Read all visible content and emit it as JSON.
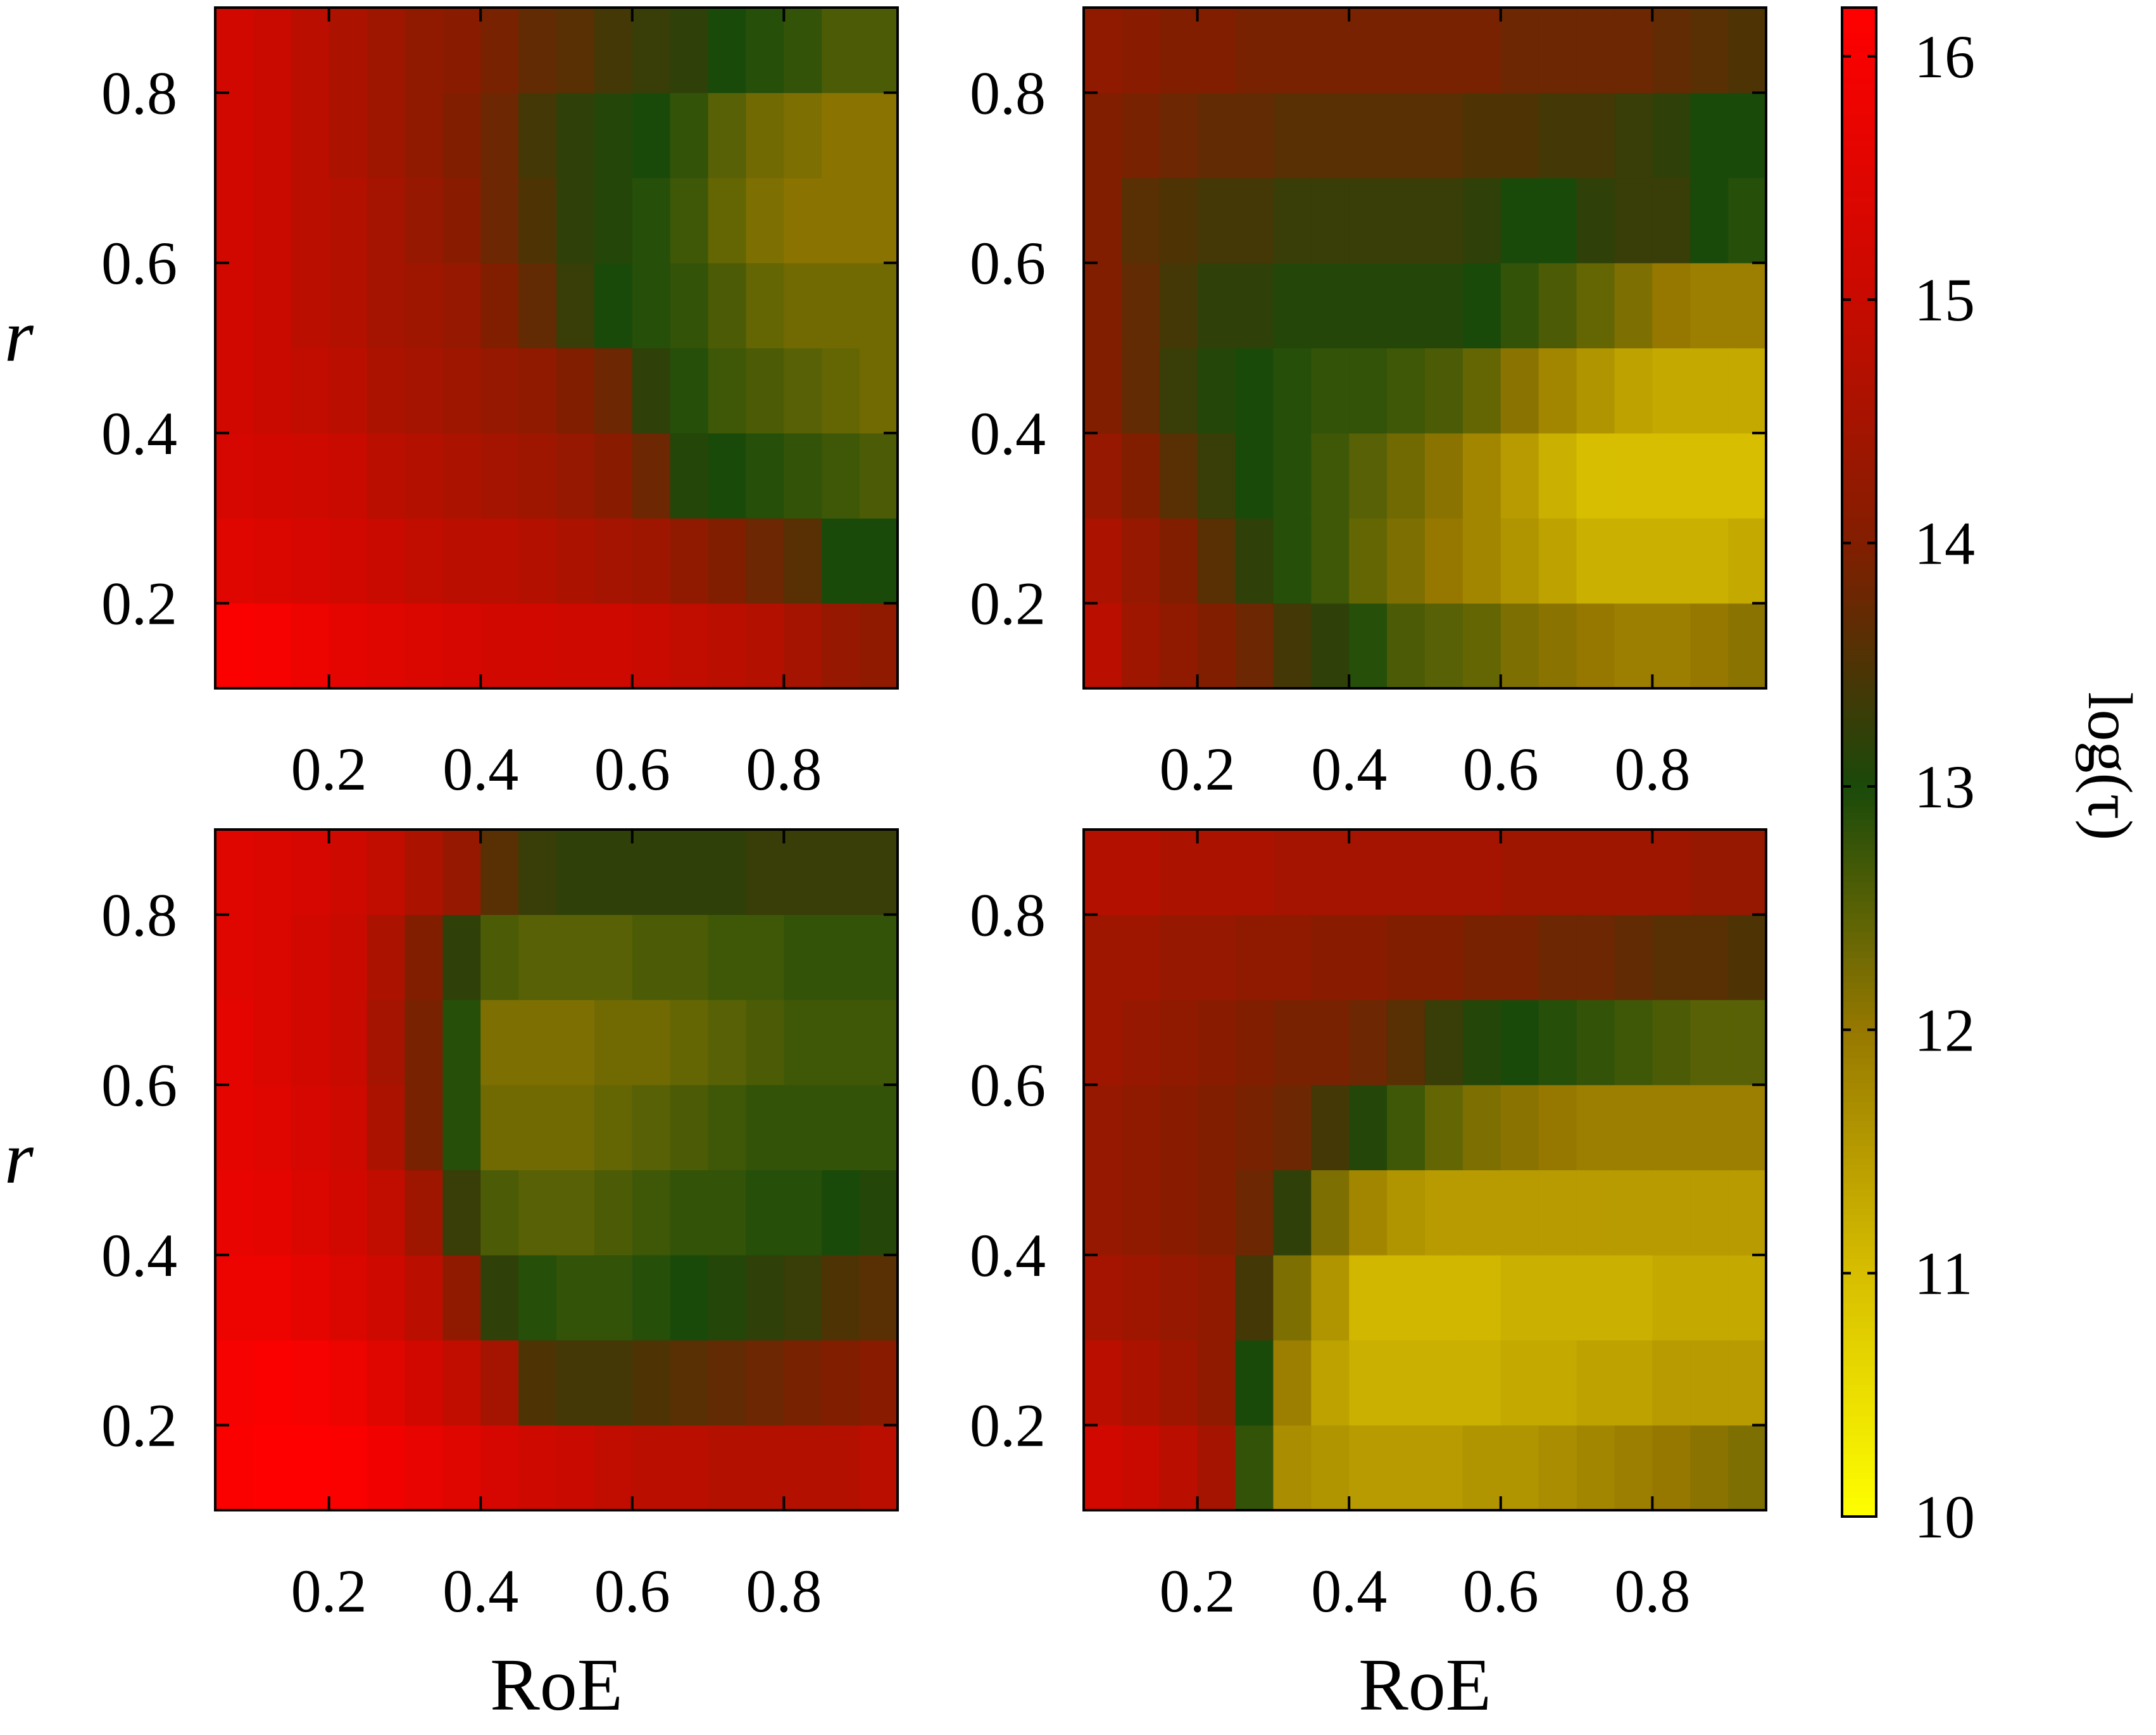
{
  "chart_data": {
    "type": "heatmap",
    "layout": "2x2 grid",
    "x_label": "RoE",
    "y_label": "r",
    "x_ticks": [
      0.2,
      0.4,
      0.6,
      0.8
    ],
    "y_ticks": [
      0.2,
      0.4,
      0.6,
      0.8
    ],
    "x_range": [
      0.05,
      0.95
    ],
    "y_range": [
      0.1,
      0.9
    ],
    "x_cell_centers": [
      0.075,
      0.125,
      0.175,
      0.225,
      0.275,
      0.325,
      0.375,
      0.425,
      0.475,
      0.525,
      0.575,
      0.625,
      0.675,
      0.725,
      0.775,
      0.825,
      0.875,
      0.925
    ],
    "y_cell_centers": [
      0.15,
      0.25,
      0.35,
      0.45,
      0.55,
      0.65,
      0.75,
      0.85
    ],
    "colorbar": {
      "label": "log(τ)",
      "range": [
        10,
        16.2
      ],
      "ticks": [
        10,
        11,
        12,
        13,
        14,
        15,
        16
      ],
      "colors": {
        "low": "#ffff00",
        "mid_low": "#d4b400",
        "mid": "#1a4a0a",
        "high": "#8b1a00",
        "max": "#ff0000"
      }
    },
    "panels": [
      {
        "position": "top-left",
        "values": [
          [
            16.1,
            16.0,
            15.8,
            15.6,
            15.5,
            15.4,
            15.3,
            15.2,
            15.2,
            15.1,
            15.1,
            15.0,
            14.9,
            14.8,
            14.7,
            14.5,
            14.3,
            14.2
          ],
          [
            15.5,
            15.4,
            15.3,
            15.2,
            15.0,
            14.9,
            14.8,
            14.8,
            14.7,
            14.6,
            14.5,
            14.4,
            14.2,
            14.0,
            13.8,
            13.6,
            13.0,
            13.0
          ],
          [
            15.3,
            15.2,
            15.1,
            15.0,
            14.8,
            14.7,
            14.6,
            14.5,
            14.4,
            14.3,
            14.1,
            13.8,
            13.1,
            13.0,
            12.9,
            12.8,
            12.7,
            12.6
          ],
          [
            15.2,
            15.0,
            14.9,
            14.8,
            14.6,
            14.5,
            14.4,
            14.3,
            14.2,
            14.0,
            13.8,
            13.2,
            12.9,
            12.7,
            12.6,
            12.5,
            12.4,
            12.3
          ],
          [
            15.2,
            15.0,
            14.8,
            14.7,
            14.5,
            14.4,
            14.3,
            14.0,
            13.7,
            13.3,
            13.0,
            12.9,
            12.8,
            12.6,
            12.4,
            12.3,
            12.3,
            12.3
          ],
          [
            15.2,
            15.0,
            14.8,
            14.7,
            14.5,
            14.3,
            14.1,
            13.8,
            13.5,
            13.2,
            13.1,
            12.9,
            12.7,
            12.4,
            12.2,
            12.1,
            12.1,
            12.1
          ],
          [
            15.2,
            15.0,
            14.8,
            14.6,
            14.4,
            14.2,
            14.0,
            13.8,
            13.4,
            13.2,
            13.1,
            13.0,
            12.8,
            12.5,
            12.3,
            12.2,
            12.1,
            12.1
          ],
          [
            15.2,
            15.0,
            14.8,
            14.6,
            14.4,
            14.2,
            14.1,
            13.9,
            13.7,
            13.6,
            13.4,
            13.3,
            13.2,
            13.0,
            12.9,
            12.8,
            12.6,
            12.6
          ]
        ]
      },
      {
        "position": "top-right",
        "values": [
          [
            14.8,
            14.4,
            14.2,
            14.0,
            13.8,
            13.4,
            13.2,
            12.9,
            12.6,
            12.5,
            12.4,
            12.2,
            12.1,
            12.0,
            11.9,
            11.9,
            12.0,
            12.1
          ],
          [
            14.6,
            14.3,
            14.0,
            13.6,
            13.2,
            12.9,
            12.7,
            12.4,
            12.2,
            12.0,
            11.8,
            11.6,
            11.4,
            11.2,
            11.2,
            11.2,
            11.2,
            11.3
          ],
          [
            14.3,
            14.0,
            13.6,
            13.3,
            13.0,
            12.9,
            12.7,
            12.5,
            12.3,
            12.1,
            11.8,
            11.5,
            11.2,
            11.0,
            11.0,
            11.0,
            11.0,
            11.0
          ],
          [
            14.0,
            13.7,
            13.3,
            13.1,
            13.0,
            12.9,
            12.8,
            12.8,
            12.7,
            12.6,
            12.4,
            12.1,
            11.8,
            11.6,
            11.4,
            11.3,
            11.3,
            11.3
          ],
          [
            14.0,
            13.7,
            13.4,
            13.2,
            13.2,
            13.1,
            13.1,
            13.1,
            13.1,
            13.1,
            13.0,
            12.8,
            12.6,
            12.4,
            12.2,
            12.0,
            11.9,
            11.9
          ],
          [
            14.0,
            13.6,
            13.5,
            13.4,
            13.4,
            13.3,
            13.3,
            13.3,
            13.3,
            13.3,
            13.2,
            13.0,
            13.0,
            13.2,
            13.3,
            13.3,
            13.0,
            12.9
          ],
          [
            14.0,
            13.9,
            13.8,
            13.7,
            13.7,
            13.6,
            13.6,
            13.6,
            13.6,
            13.6,
            13.5,
            13.5,
            13.4,
            13.4,
            13.3,
            13.2,
            13.0,
            13.0
          ],
          [
            14.2,
            14.1,
            14.0,
            14.0,
            13.9,
            13.9,
            13.9,
            13.9,
            13.9,
            13.9,
            13.9,
            13.8,
            13.8,
            13.8,
            13.8,
            13.7,
            13.6,
            13.5
          ]
        ]
      },
      {
        "position": "bottom-left",
        "values": [
          [
            16.1,
            16.2,
            16.2,
            16.1,
            15.9,
            15.7,
            15.5,
            15.3,
            15.1,
            15.0,
            14.9,
            14.8,
            14.8,
            14.7,
            14.7,
            14.7,
            14.7,
            14.8
          ],
          [
            16.0,
            16.1,
            16.0,
            15.8,
            15.5,
            15.2,
            14.9,
            14.5,
            13.5,
            13.4,
            13.4,
            13.5,
            13.6,
            13.7,
            13.8,
            13.9,
            14.0,
            14.1
          ],
          [
            15.8,
            15.8,
            15.6,
            15.4,
            15.1,
            14.8,
            14.2,
            13.2,
            12.9,
            12.8,
            12.8,
            12.9,
            13.0,
            13.1,
            13.2,
            13.3,
            13.5,
            13.6
          ],
          [
            15.7,
            15.6,
            15.4,
            15.2,
            14.9,
            14.4,
            13.3,
            12.6,
            12.5,
            12.5,
            12.6,
            12.7,
            12.8,
            12.8,
            12.9,
            12.9,
            13.0,
            13.1
          ],
          [
            15.6,
            15.5,
            15.3,
            15.1,
            14.6,
            13.9,
            12.9,
            12.3,
            12.3,
            12.3,
            12.4,
            12.5,
            12.6,
            12.7,
            12.8,
            12.8,
            12.8,
            12.8
          ],
          [
            15.6,
            15.4,
            15.2,
            15.0,
            14.5,
            13.9,
            12.9,
            12.2,
            12.2,
            12.2,
            12.3,
            12.3,
            12.4,
            12.5,
            12.6,
            12.7,
            12.7,
            12.7
          ],
          [
            15.5,
            15.4,
            15.2,
            15.0,
            14.6,
            14.0,
            13.2,
            12.6,
            12.5,
            12.5,
            12.5,
            12.6,
            12.6,
            12.7,
            12.7,
            12.8,
            12.8,
            12.8
          ],
          [
            15.5,
            15.4,
            15.3,
            15.1,
            14.9,
            14.6,
            14.3,
            13.6,
            13.3,
            13.2,
            13.2,
            13.2,
            13.2,
            13.2,
            13.3,
            13.3,
            13.3,
            13.3
          ]
        ]
      },
      {
        "position": "bottom-right",
        "values": [
          [
            15.2,
            15.0,
            14.8,
            14.5,
            12.8,
            11.7,
            11.6,
            11.5,
            11.5,
            11.5,
            11.6,
            11.6,
            11.7,
            11.8,
            11.9,
            12.0,
            12.1,
            12.2
          ],
          [
            14.8,
            14.6,
            14.4,
            14.2,
            13.0,
            11.9,
            11.4,
            11.2,
            11.2,
            11.2,
            11.2,
            11.3,
            11.3,
            11.4,
            11.4,
            11.5,
            11.5,
            11.5
          ],
          [
            14.5,
            14.4,
            14.3,
            14.2,
            13.4,
            12.2,
            11.6,
            11.1,
            11.1,
            11.1,
            11.1,
            11.2,
            11.2,
            11.2,
            11.2,
            11.3,
            11.3,
            11.3
          ],
          [
            14.3,
            14.2,
            14.1,
            14.0,
            13.8,
            13.2,
            12.2,
            11.8,
            11.6,
            11.5,
            11.5,
            11.5,
            11.5,
            11.5,
            11.5,
            11.5,
            11.5,
            11.5
          ],
          [
            14.3,
            14.2,
            14.1,
            14.0,
            13.9,
            13.8,
            13.4,
            13.1,
            12.7,
            12.4,
            12.2,
            12.1,
            12.0,
            11.9,
            11.9,
            11.9,
            11.9,
            11.9
          ],
          [
            14.4,
            14.3,
            14.2,
            14.1,
            14.0,
            13.9,
            13.9,
            13.8,
            13.6,
            13.3,
            13.1,
            13.0,
            12.9,
            12.8,
            12.7,
            12.6,
            12.5,
            12.5
          ],
          [
            14.4,
            14.4,
            14.3,
            14.3,
            14.2,
            14.2,
            14.1,
            14.1,
            14.0,
            14.0,
            13.9,
            13.9,
            13.8,
            13.8,
            13.7,
            13.6,
            13.6,
            13.5
          ],
          [
            14.7,
            14.7,
            14.6,
            14.6,
            14.6,
            14.5,
            14.5,
            14.5,
            14.5,
            14.5,
            14.5,
            14.4,
            14.4,
            14.4,
            14.4,
            14.4,
            14.3,
            14.3
          ]
        ]
      }
    ]
  }
}
